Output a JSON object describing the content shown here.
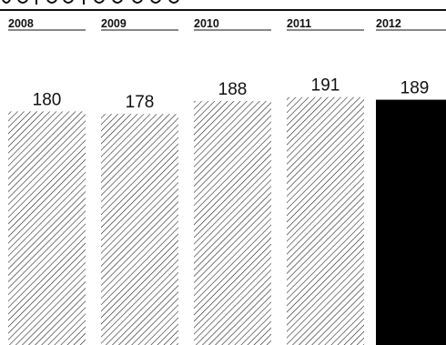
{
  "chart_data": {
    "type": "bar",
    "categories": [
      "2008",
      "2009",
      "2010",
      "2011",
      "2012"
    ],
    "values": [
      180,
      178,
      188,
      191,
      189
    ],
    "ylim": [
      0,
      195
    ],
    "grid": false,
    "legend": "none",
    "title": "",
    "xlabel": "",
    "ylabel": "",
    "highlight_index": 4,
    "colors": {
      "hatch": "#111111",
      "highlight": "#000000",
      "text": "#111111",
      "rule": "#111111"
    }
  }
}
